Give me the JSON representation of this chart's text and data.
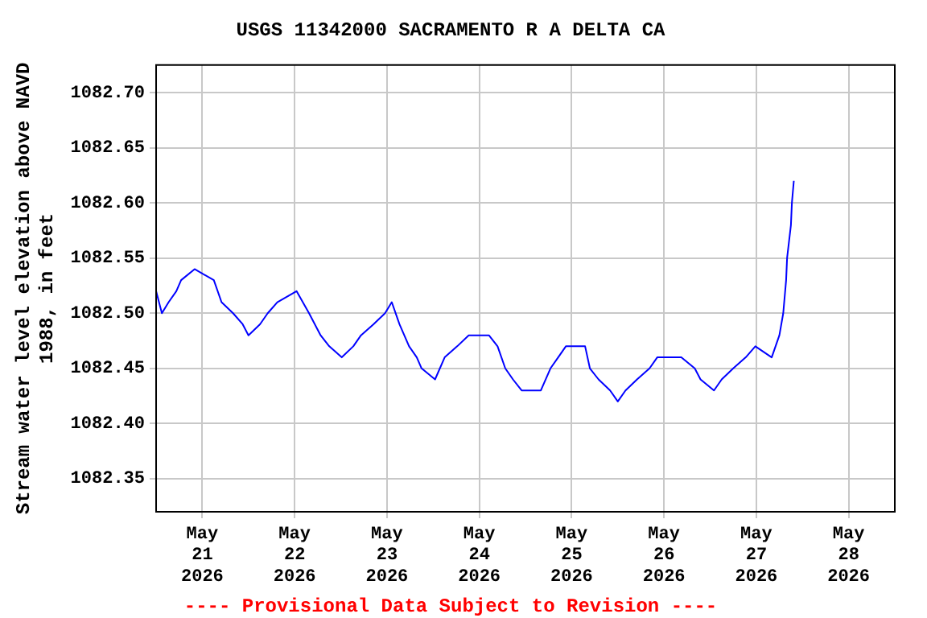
{
  "chart_data": {
    "type": "line",
    "title": "USGS 11342000 SACRAMENTO R A DELTA CA",
    "ylabel": "Stream water level elevation above NAVD 1988, in feet",
    "annotations": [
      "---- Provisional Data Subject to Revision ----"
    ],
    "x": [
      "2026-05-20T12:00",
      "2026-05-20T13:30",
      "2026-05-20T15:15",
      "2026-05-20T17:15",
      "2026-05-20T18:30",
      "2026-05-20T22:00",
      "2026-05-21T03:00",
      "2026-05-21T05:00",
      "2026-05-21T08:00",
      "2026-05-21T10:30",
      "2026-05-21T12:00",
      "2026-05-21T15:00",
      "2026-05-21T17:00",
      "2026-05-21T19:30",
      "2026-05-22T00:30",
      "2026-05-22T03:45",
      "2026-05-22T06:45",
      "2026-05-22T09:00",
      "2026-05-22T12:15",
      "2026-05-22T15:15",
      "2026-05-22T17:15",
      "2026-05-22T20:30",
      "2026-05-22T23:30",
      "2026-05-23T01:15",
      "2026-05-23T03:15",
      "2026-05-23T05:45",
      "2026-05-23T07:45",
      "2026-05-23T09:00",
      "2026-05-23T12:30",
      "2026-05-23T15:00",
      "2026-05-23T18:15",
      "2026-05-23T21:15",
      "2026-05-24T02:30",
      "2026-05-24T04:45",
      "2026-05-24T06:45",
      "2026-05-24T08:45",
      "2026-05-24T11:00",
      "2026-05-24T16:00",
      "2026-05-24T18:30",
      "2026-05-24T20:30",
      "2026-05-24T22:30",
      "2026-05-25T03:30",
      "2026-05-25T04:45",
      "2026-05-25T07:00",
      "2026-05-25T10:00",
      "2026-05-25T12:00",
      "2026-05-25T14:00",
      "2026-05-25T17:00",
      "2026-05-25T20:15",
      "2026-05-25T22:15",
      "2026-05-26T04:30",
      "2026-05-26T08:00",
      "2026-05-26T09:30",
      "2026-05-26T13:00",
      "2026-05-26T15:00",
      "2026-05-26T18:00",
      "2026-05-26T21:15",
      "2026-05-26T23:45",
      "2026-05-27T04:00",
      "2026-05-27T06:00",
      "2026-05-27T07:00",
      "2026-05-27T07:45",
      "2026-05-27T08:00",
      "2026-05-27T09:00",
      "2026-05-27T09:15",
      "2026-05-27T09:45"
    ],
    "series": [
      {
        "color": "#0000ff",
        "values": [
          1082.52,
          1082.5,
          1082.51,
          1082.52,
          1082.53,
          1082.54,
          1082.53,
          1082.51,
          1082.5,
          1082.49,
          1082.48,
          1082.49,
          1082.5,
          1082.51,
          1082.52,
          1082.5,
          1082.48,
          1082.47,
          1082.46,
          1082.47,
          1082.48,
          1082.49,
          1082.5,
          1082.51,
          1082.49,
          1082.47,
          1082.46,
          1082.45,
          1082.44,
          1082.46,
          1082.47,
          1082.48,
          1082.48,
          1082.47,
          1082.45,
          1082.44,
          1082.43,
          1082.43,
          1082.45,
          1082.46,
          1082.47,
          1082.47,
          1082.45,
          1082.44,
          1082.43,
          1082.42,
          1082.43,
          1082.44,
          1082.45,
          1082.46,
          1082.46,
          1082.45,
          1082.44,
          1082.43,
          1082.44,
          1082.45,
          1082.46,
          1082.47,
          1082.46,
          1082.48,
          1082.5,
          1082.53,
          1082.55,
          1082.58,
          1082.6,
          1082.62
        ]
      }
    ],
    "xlim": [
      "2026-05-20T12:00",
      "2026-05-28T12:00"
    ],
    "xticks": [
      {
        "value": "2026-05-21",
        "label": "May\n21\n2026"
      },
      {
        "value": "2026-05-22",
        "label": "May\n22\n2026"
      },
      {
        "value": "2026-05-23",
        "label": "May\n23\n2026"
      },
      {
        "value": "2026-05-24",
        "label": "May\n24\n2026"
      },
      {
        "value": "2026-05-25",
        "label": "May\n25\n2026"
      },
      {
        "value": "2026-05-26",
        "label": "May\n26\n2026"
      },
      {
        "value": "2026-05-27",
        "label": "May\n27\n2026"
      },
      {
        "value": "2026-05-28",
        "label": "May\n28\n2026"
      }
    ],
    "ylim": [
      1082.32,
      1082.725
    ],
    "yticks": [
      {
        "value": 1082.35,
        "label": "1082.35"
      },
      {
        "value": 1082.4,
        "label": "1082.40"
      },
      {
        "value": 1082.45,
        "label": "1082.45"
      },
      {
        "value": 1082.5,
        "label": "1082.50"
      },
      {
        "value": 1082.55,
        "label": "1082.55"
      },
      {
        "value": 1082.6,
        "label": "1082.60"
      },
      {
        "value": 1082.65,
        "label": "1082.65"
      },
      {
        "value": 1082.7,
        "label": "1082.70"
      }
    ],
    "grid": true,
    "legend": false,
    "marker": "none",
    "line_style": "solid"
  }
}
